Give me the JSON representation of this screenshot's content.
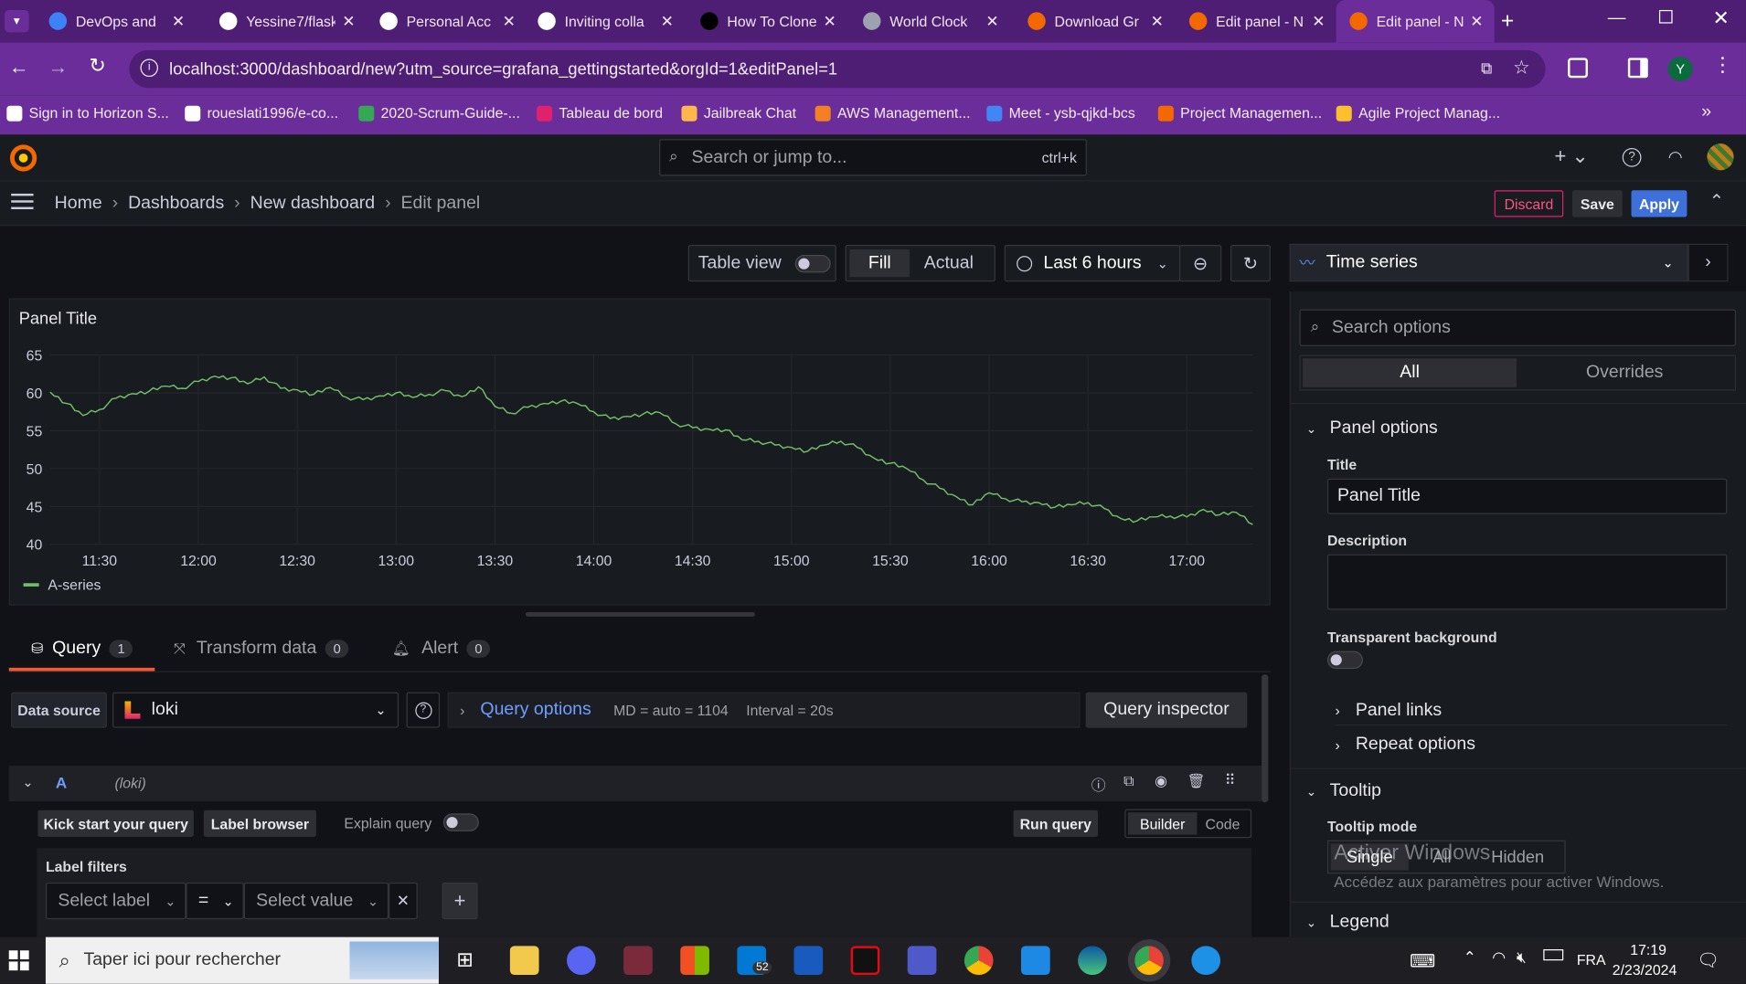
{
  "browser": {
    "tabs": [
      {
        "title": "DevOps and",
        "color": "#3b82f6"
      },
      {
        "title": "Yessine7/flask",
        "color": "#fff"
      },
      {
        "title": "Personal Acc",
        "color": "#fff"
      },
      {
        "title": "Inviting colla",
        "color": "#fff"
      },
      {
        "title": "How To Clone",
        "color": "#000"
      },
      {
        "title": "World Clock",
        "color": "#9ca3af"
      },
      {
        "title": "Download Gr",
        "color": "#f46800"
      },
      {
        "title": "Edit panel - N",
        "color": "#f46800"
      },
      {
        "title": "Edit panel - N",
        "color": "#f46800"
      }
    ],
    "url": "localhost:3000/dashboard/new?utm_source=grafana_gettingstarted&orgId=1&editPanel=1",
    "bookmarks": [
      "Sign in to Horizon S...",
      "roueslati1996/e-co...",
      "2020-Scrum-Guide-...",
      "Tableau de bord",
      "Jailbreak Chat",
      "AWS Management...",
      "Meet - ysb-qjkd-bcs",
      "Project Managemen...",
      "Agile Project Manag..."
    ],
    "profile_initial": "Y"
  },
  "grafana": {
    "search_placeholder": "Search or jump to...",
    "search_shortcut": "ctrl+k",
    "breadcrumb": [
      "Home",
      "Dashboards",
      "New dashboard",
      "Edit panel"
    ],
    "discard": "Discard",
    "save": "Save",
    "apply": "Apply",
    "table_view": "Table view",
    "fill": "Fill",
    "actual": "Actual",
    "time_range": "Last 6 hours",
    "viz_type": "Time series",
    "panel_title": "Panel Title",
    "legend_series": "A-series"
  },
  "query": {
    "tabs": [
      {
        "label": "Query",
        "count": "1"
      },
      {
        "label": "Transform data",
        "count": "0"
      },
      {
        "label": "Alert",
        "count": "0"
      }
    ],
    "data_source_label": "Data source",
    "data_source": "loki",
    "query_options": "Query options",
    "md": "MD = auto = 1104",
    "interval": "Interval = 20s",
    "inspector": "Query inspector",
    "ref": "A",
    "ref_ds": "(loki)",
    "kick": "Kick start your query",
    "label_browser": "Label browser",
    "explain": "Explain query",
    "run": "Run query",
    "builder": "Builder",
    "code": "Code",
    "label_filters": "Label filters",
    "select_label": "Select label",
    "op": "=",
    "select_value": "Select value"
  },
  "options": {
    "search_placeholder": "Search options",
    "all": "All",
    "overrides": "Overrides",
    "panel_options": "Panel options",
    "title_label": "Title",
    "title_value": "Panel Title",
    "description": "Description",
    "transparent": "Transparent background",
    "panel_links": "Panel links",
    "repeat": "Repeat options",
    "tooltip": "Tooltip",
    "tooltip_mode": "Tooltip mode",
    "modes": [
      "Single",
      "All",
      "Hidden"
    ],
    "legend": "Legend",
    "watermark1": "Activer Windows",
    "watermark2": "Accédez aux paramètres pour activer Windows."
  },
  "taskbar": {
    "search": "Taper ici pour rechercher",
    "lang": "FRA",
    "time": "17:19",
    "date": "2/23/2024",
    "mail_count": "52"
  },
  "chart_data": {
    "type": "line",
    "title": "Panel Title",
    "x_ticks": [
      "11:30",
      "12:00",
      "12:30",
      "13:00",
      "13:30",
      "14:00",
      "14:30",
      "15:00",
      "15:30",
      "16:00",
      "16:30",
      "17:00"
    ],
    "y_ticks": [
      40,
      45,
      50,
      55,
      60,
      65
    ],
    "ylim": [
      40,
      65
    ],
    "series": [
      {
        "name": "A-series",
        "color": "#73bf69",
        "points": [
          [
            "11:15",
            60.1
          ],
          [
            "11:20",
            58.6
          ],
          [
            "11:25",
            57.0
          ],
          [
            "11:30",
            57.8
          ],
          [
            "11:35",
            59.3
          ],
          [
            "11:40",
            59.9
          ],
          [
            "11:45",
            60.2
          ],
          [
            "11:50",
            60.9
          ],
          [
            "11:55",
            60.6
          ],
          [
            "12:00",
            61.5
          ],
          [
            "12:05",
            62.2
          ],
          [
            "12:10",
            62.0
          ],
          [
            "12:15",
            61.2
          ],
          [
            "12:20",
            62.1
          ],
          [
            "12:25",
            60.6
          ],
          [
            "12:30",
            60.4
          ],
          [
            "12:35",
            59.8
          ],
          [
            "12:40",
            60.7
          ],
          [
            "12:45",
            59.4
          ],
          [
            "12:50",
            59.1
          ],
          [
            "12:55",
            59.6
          ],
          [
            "13:00",
            60.0
          ],
          [
            "13:05",
            59.4
          ],
          [
            "13:10",
            59.8
          ],
          [
            "13:15",
            60.3
          ],
          [
            "13:20",
            59.5
          ],
          [
            "13:25",
            60.8
          ],
          [
            "13:30",
            58.2
          ],
          [
            "13:35",
            57.3
          ],
          [
            "13:40",
            58.1
          ],
          [
            "13:45",
            58.6
          ],
          [
            "13:50",
            58.9
          ],
          [
            "13:55",
            58.6
          ],
          [
            "14:00",
            57.5
          ],
          [
            "14:05",
            56.6
          ],
          [
            "14:10",
            56.9
          ],
          [
            "14:15",
            57.2
          ],
          [
            "14:20",
            57.4
          ],
          [
            "14:25",
            55.9
          ],
          [
            "14:30",
            55.4
          ],
          [
            "14:35",
            55.2
          ],
          [
            "14:40",
            55.1
          ],
          [
            "14:45",
            53.8
          ],
          [
            "14:50",
            53.6
          ],
          [
            "14:55",
            53.1
          ],
          [
            "15:00",
            52.8
          ],
          [
            "15:05",
            52.3
          ],
          [
            "15:10",
            53.1
          ],
          [
            "15:15",
            53.6
          ],
          [
            "15:20",
            52.8
          ],
          [
            "15:25",
            51.4
          ],
          [
            "15:30",
            50.7
          ],
          [
            "15:35",
            50.0
          ],
          [
            "15:40",
            48.5
          ],
          [
            "15:45",
            47.4
          ],
          [
            "15:50",
            46.3
          ],
          [
            "15:55",
            45.2
          ],
          [
            "16:00",
            46.8
          ],
          [
            "16:05",
            46.0
          ],
          [
            "16:10",
            45.6
          ],
          [
            "16:15",
            45.5
          ],
          [
            "16:20",
            44.9
          ],
          [
            "16:25",
            45.2
          ],
          [
            "16:30",
            45.5
          ],
          [
            "16:35",
            44.7
          ],
          [
            "16:40",
            43.4
          ],
          [
            "16:45",
            43.1
          ],
          [
            "16:50",
            43.6
          ],
          [
            "16:55",
            43.7
          ],
          [
            "17:00",
            43.6
          ],
          [
            "17:05",
            44.6
          ],
          [
            "17:10",
            43.9
          ],
          [
            "17:15",
            44.2
          ],
          [
            "17:20",
            42.6
          ]
        ]
      }
    ]
  }
}
